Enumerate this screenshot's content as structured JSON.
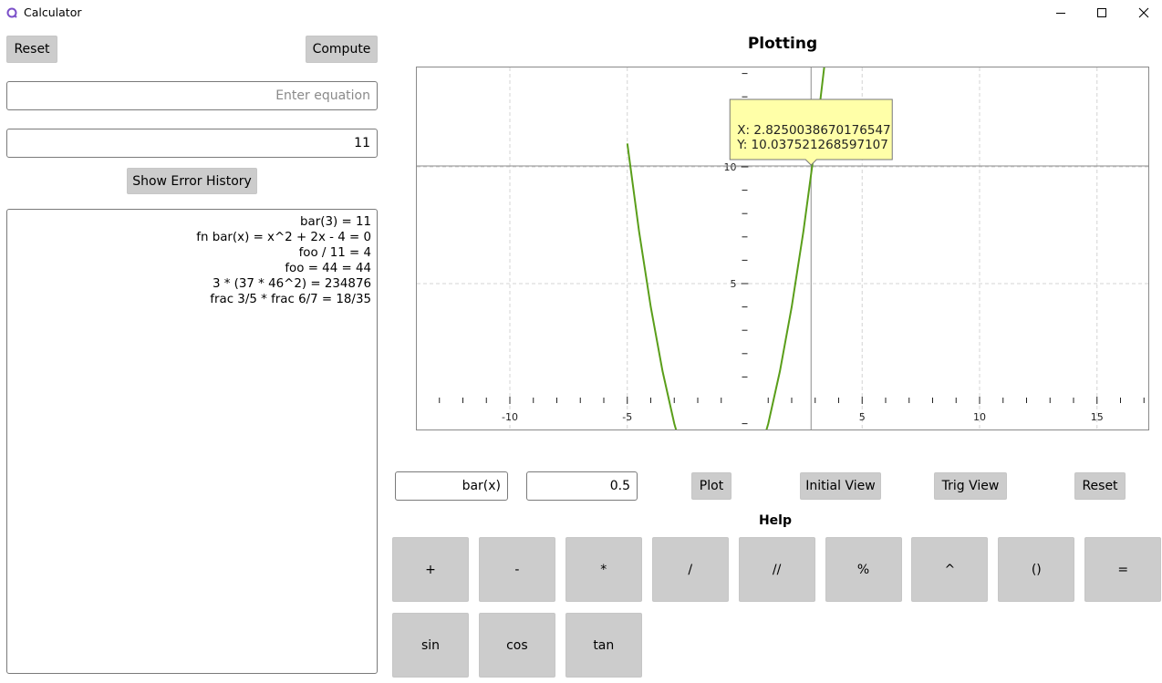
{
  "window": {
    "title": "Calculator",
    "minimize_icon": "minimize-icon",
    "maximize_icon": "maximize-icon",
    "close_icon": "close-icon"
  },
  "left_panel": {
    "reset_label": "Reset",
    "compute_label": "Compute",
    "equation_placeholder": "Enter equation",
    "equation_value": "",
    "result_value": "11",
    "show_error_history_label": "Show Error History",
    "history": [
      "bar(3) = 11",
      "fn bar(x) = x^2 + 2x - 4 = 0",
      "foo / 11 = 4",
      "foo = 44 = 44",
      "3 * (37 * 46^2) = 234876",
      "frac 3/5 * frac 6/7 = 18/35"
    ]
  },
  "plot": {
    "title": "Plotting",
    "tooltip": {
      "x_text": "X: 2.8250038670176547",
      "y_text": "Y: 10.037521268597107"
    },
    "function_value": "bar(x)",
    "step_value": "0.5",
    "plot_label": "Plot",
    "initial_view_label": "Initial View",
    "trig_view_label": "Trig View",
    "reset_label": "Reset",
    "help_label": "Help"
  },
  "chart_data": {
    "type": "line",
    "function": "x^2 + 2x - 4",
    "xlim": [
      -14,
      17.2
    ],
    "ylim": [
      -1.0,
      14.5
    ],
    "x_ticks": [
      -10,
      -5,
      5,
      10,
      15
    ],
    "y_ticks": [
      5,
      10
    ],
    "grid": true,
    "series": [
      {
        "color": "#5a9e1a",
        "x_start": -5.0,
        "x_end": 3.5,
        "step": 0.5
      }
    ],
    "crosshair": {
      "x": 2.8250038670176547,
      "y": 10.037521268597107
    }
  },
  "keypad": {
    "row1": [
      "+",
      "-",
      "*",
      "/",
      "//",
      "%",
      "^",
      "()",
      "="
    ],
    "row2": [
      "sin",
      "cos",
      "tan"
    ]
  }
}
